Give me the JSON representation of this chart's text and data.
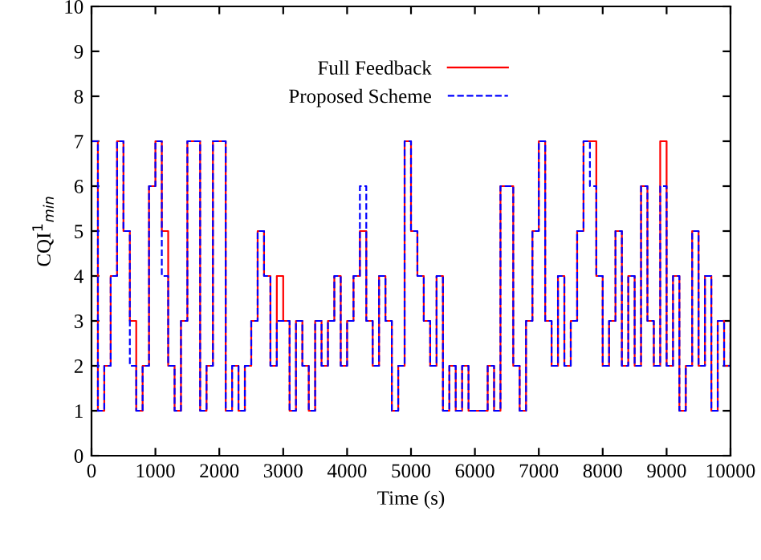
{
  "chart_data": {
    "type": "step",
    "xlabel": "Time (s)",
    "ylabel": "CQI$^{1}$$_{min}$",
    "x": [
      0,
      100,
      200,
      300,
      400,
      500,
      600,
      700,
      800,
      900,
      1000,
      1100,
      1200,
      1300,
      1400,
      1500,
      1600,
      1700,
      1800,
      1900,
      2000,
      2100,
      2200,
      2300,
      2400,
      2500,
      2600,
      2700,
      2800,
      2900,
      3000,
      3100,
      3200,
      3300,
      3400,
      3500,
      3600,
      3700,
      3800,
      3900,
      4000,
      4100,
      4200,
      4300,
      4400,
      4500,
      4600,
      4700,
      4800,
      4900,
      5000,
      5100,
      5200,
      5300,
      5400,
      5500,
      5600,
      5700,
      5800,
      5900,
      6000,
      6100,
      6200,
      6300,
      6400,
      6500,
      6600,
      6700,
      6800,
      6900,
      7000,
      7100,
      7200,
      7300,
      7400,
      7500,
      7600,
      7700,
      7800,
      7900,
      8000,
      8100,
      8200,
      8300,
      8400,
      8500,
      8600,
      8700,
      8800,
      8900,
      9000,
      9100,
      9200,
      9300,
      9400,
      9500,
      9600,
      9700,
      9800,
      9900,
      10000
    ],
    "series": [
      {
        "name": "Full Feedback",
        "color": "#ff0000",
        "line_style": "solid",
        "values": [
          7,
          1,
          2,
          4,
          7,
          5,
          3,
          1,
          2,
          6,
          7,
          5,
          2,
          1,
          3,
          7,
          7,
          1,
          2,
          7,
          7,
          1,
          2,
          1,
          2,
          3,
          5,
          4,
          2,
          4,
          3,
          1,
          3,
          2,
          1,
          3,
          2,
          3,
          4,
          2,
          3,
          4,
          5,
          3,
          2,
          4,
          3,
          1,
          2,
          7,
          5,
          4,
          3,
          2,
          4,
          1,
          2,
          1,
          2,
          1,
          1,
          1,
          2,
          1,
          6,
          6,
          2,
          1,
          3,
          5,
          7,
          3,
          2,
          4,
          2,
          3,
          5,
          7,
          7,
          4,
          2,
          3,
          5,
          2,
          4,
          2,
          6,
          3,
          2,
          7,
          2,
          4,
          1,
          2,
          5,
          2,
          4,
          1,
          3,
          2,
          3
        ]
      },
      {
        "name": "Proposed Scheme",
        "color": "#0000ff",
        "line_style": "dashed",
        "values": [
          7,
          1,
          2,
          4,
          7,
          5,
          2,
          1,
          2,
          6,
          7,
          4,
          2,
          1,
          3,
          7,
          7,
          1,
          2,
          7,
          7,
          1,
          2,
          1,
          2,
          3,
          5,
          4,
          2,
          3,
          3,
          1,
          3,
          2,
          1,
          3,
          2,
          3,
          4,
          2,
          3,
          4,
          6,
          3,
          2,
          4,
          3,
          1,
          2,
          7,
          5,
          4,
          3,
          2,
          4,
          1,
          2,
          1,
          2,
          1,
          1,
          1,
          2,
          1,
          6,
          6,
          2,
          1,
          3,
          5,
          7,
          3,
          2,
          4,
          2,
          3,
          5,
          7,
          6,
          4,
          2,
          3,
          5,
          2,
          4,
          2,
          6,
          3,
          2,
          6,
          2,
          4,
          1,
          2,
          5,
          2,
          4,
          1,
          3,
          2,
          3
        ]
      }
    ],
    "xlim": [
      0,
      10000
    ],
    "xticks": [
      0,
      1000,
      2000,
      3000,
      4000,
      5000,
      6000,
      7000,
      8000,
      9000,
      10000
    ],
    "ylim": [
      0,
      10
    ],
    "yticks": [
      0,
      1,
      2,
      3,
      4,
      5,
      6,
      7,
      8,
      9,
      10
    ],
    "grid": false,
    "legend": "top"
  }
}
